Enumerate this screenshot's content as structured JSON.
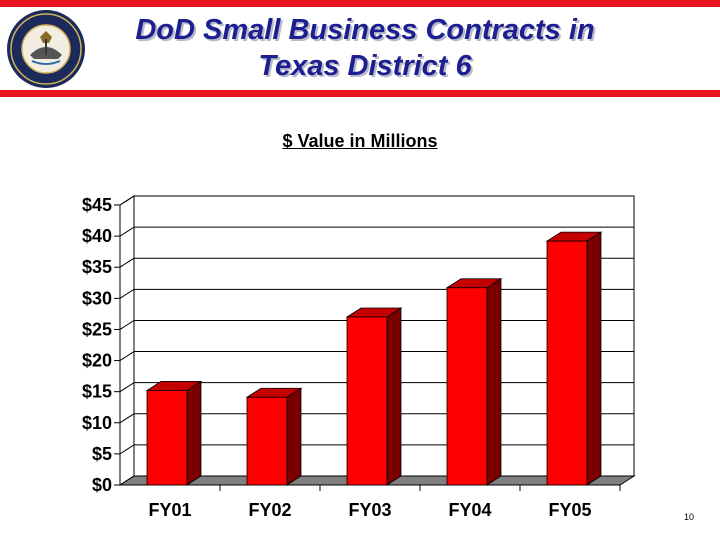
{
  "slide": {
    "title_line1": "DoD Small Business Contracts in",
    "title_line2": "Texas District 6",
    "page_number": "10"
  },
  "seal": {
    "icon": "department-of-the-navy-seal",
    "text": "DEPARTMENT OF THE NAVY · UNITED STATES OF AMERICA"
  },
  "colors": {
    "rule": "#e8141f",
    "title": "#1b1f8f",
    "bar_front": "#ff0000",
    "bar_side": "#7a0000",
    "bar_top": "#c40000"
  },
  "chart_data": {
    "type": "bar",
    "title": "$ Value in Millions",
    "xlabel": "",
    "ylabel": "",
    "categories": [
      "FY01",
      "FY02",
      "FY03",
      "FY04",
      "FY05"
    ],
    "values": [
      15.2,
      14.1,
      27.0,
      31.7,
      39.2
    ],
    "ylim": [
      0,
      45
    ],
    "yticks": [
      0,
      5,
      10,
      15,
      20,
      25,
      30,
      35,
      40,
      45
    ],
    "ytick_labels": [
      "$0",
      "$5",
      "$10",
      "$15",
      "$20",
      "$25",
      "$30",
      "$35",
      "$40",
      "$45"
    ],
    "grid": true,
    "legend": "none"
  }
}
